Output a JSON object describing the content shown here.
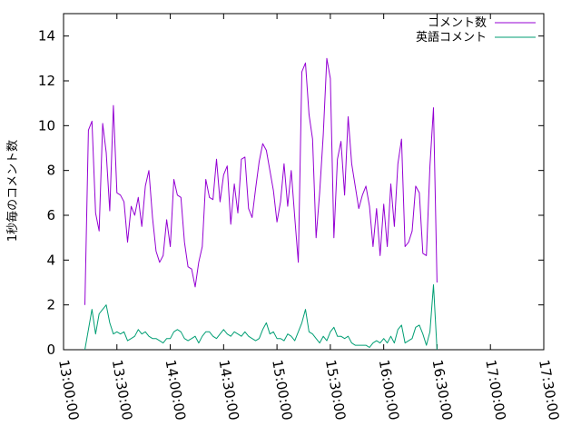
{
  "chart_data": {
    "type": "line",
    "ylabel": "1秒毎のコメント数",
    "ylim": [
      0,
      15
    ],
    "xlim": [
      "13:00:00",
      "17:30:00"
    ],
    "y_ticks": [
      0,
      2,
      4,
      6,
      8,
      10,
      12,
      14
    ],
    "x_ticks": [
      "13:00:00",
      "13:30:00",
      "14:00:00",
      "14:30:00",
      "15:00:00",
      "15:30:00",
      "16:00:00",
      "16:30:00",
      "17:00:00",
      "17:30:00"
    ],
    "grid": false,
    "legend_position": "top-right",
    "series": [
      {
        "name": "コメント数",
        "color": "#9400d3",
        "points": [
          [
            "13:12:00",
            2.0
          ],
          [
            "13:14:00",
            9.8
          ],
          [
            "13:16:00",
            10.2
          ],
          [
            "13:18:00",
            6.1
          ],
          [
            "13:20:00",
            5.3
          ],
          [
            "13:22:00",
            10.1
          ],
          [
            "13:24:00",
            8.8
          ],
          [
            "13:26:00",
            6.2
          ],
          [
            "13:28:00",
            10.9
          ],
          [
            "13:30:00",
            7.0
          ],
          [
            "13:32:00",
            6.9
          ],
          [
            "13:34:00",
            6.6
          ],
          [
            "13:36:00",
            4.8
          ],
          [
            "13:38:00",
            6.4
          ],
          [
            "13:40:00",
            6.0
          ],
          [
            "13:42:00",
            6.8
          ],
          [
            "13:44:00",
            5.5
          ],
          [
            "13:46:00",
            7.3
          ],
          [
            "13:48:00",
            8.0
          ],
          [
            "13:50:00",
            5.9
          ],
          [
            "13:52:00",
            4.4
          ],
          [
            "13:54:00",
            3.9
          ],
          [
            "13:56:00",
            4.2
          ],
          [
            "13:58:00",
            5.8
          ],
          [
            "14:00:00",
            4.6
          ],
          [
            "14:02:00",
            7.6
          ],
          [
            "14:04:00",
            6.9
          ],
          [
            "14:06:00",
            6.8
          ],
          [
            "14:08:00",
            4.8
          ],
          [
            "14:10:00",
            3.7
          ],
          [
            "14:12:00",
            3.6
          ],
          [
            "14:14:00",
            2.8
          ],
          [
            "14:16:00",
            3.9
          ],
          [
            "14:18:00",
            4.6
          ],
          [
            "14:20:00",
            7.6
          ],
          [
            "14:22:00",
            6.8
          ],
          [
            "14:24:00",
            6.7
          ],
          [
            "14:26:00",
            8.5
          ],
          [
            "14:28:00",
            6.6
          ],
          [
            "14:30:00",
            7.8
          ],
          [
            "14:32:00",
            8.2
          ],
          [
            "14:34:00",
            5.6
          ],
          [
            "14:36:00",
            7.4
          ],
          [
            "14:38:00",
            6.1
          ],
          [
            "14:40:00",
            8.5
          ],
          [
            "14:42:00",
            8.6
          ],
          [
            "14:44:00",
            6.3
          ],
          [
            "14:46:00",
            5.9
          ],
          [
            "14:48:00",
            7.2
          ],
          [
            "14:50:00",
            8.4
          ],
          [
            "14:52:00",
            9.2
          ],
          [
            "14:54:00",
            8.9
          ],
          [
            "14:56:00",
            8.0
          ],
          [
            "14:58:00",
            7.1
          ],
          [
            "15:00:00",
            5.7
          ],
          [
            "15:02:00",
            6.6
          ],
          [
            "15:04:00",
            8.3
          ],
          [
            "15:06:00",
            6.4
          ],
          [
            "15:08:00",
            8.0
          ],
          [
            "15:10:00",
            5.9
          ],
          [
            "15:12:00",
            3.9
          ],
          [
            "15:14:00",
            12.4
          ],
          [
            "15:16:00",
            12.8
          ],
          [
            "15:18:00",
            10.5
          ],
          [
            "15:20:00",
            9.4
          ],
          [
            "15:22:00",
            5.0
          ],
          [
            "15:24:00",
            7.0
          ],
          [
            "15:26:00",
            9.6
          ],
          [
            "15:28:00",
            13.0
          ],
          [
            "15:30:00",
            12.1
          ],
          [
            "15:32:00",
            5.0
          ],
          [
            "15:34:00",
            8.5
          ],
          [
            "15:36:00",
            9.3
          ],
          [
            "15:38:00",
            6.9
          ],
          [
            "15:40:00",
            10.4
          ],
          [
            "15:42:00",
            8.3
          ],
          [
            "15:44:00",
            7.3
          ],
          [
            "15:46:00",
            6.3
          ],
          [
            "15:48:00",
            6.9
          ],
          [
            "15:50:00",
            7.3
          ],
          [
            "15:52:00",
            6.4
          ],
          [
            "15:54:00",
            4.6
          ],
          [
            "15:56:00",
            6.3
          ],
          [
            "15:58:00",
            4.2
          ],
          [
            "16:00:00",
            6.5
          ],
          [
            "16:02:00",
            4.6
          ],
          [
            "16:04:00",
            7.4
          ],
          [
            "16:06:00",
            5.5
          ],
          [
            "16:08:00",
            8.3
          ],
          [
            "16:10:00",
            9.4
          ],
          [
            "16:12:00",
            4.6
          ],
          [
            "16:14:00",
            4.8
          ],
          [
            "16:16:00",
            5.3
          ],
          [
            "16:18:00",
            7.3
          ],
          [
            "16:20:00",
            7.0
          ],
          [
            "16:22:00",
            4.3
          ],
          [
            "16:24:00",
            4.2
          ],
          [
            "16:26:00",
            8.2
          ],
          [
            "16:28:00",
            10.8
          ],
          [
            "16:30:00",
            3.0
          ]
        ]
      },
      {
        "name": "英語コメント",
        "color": "#009e73",
        "points": [
          [
            "13:12:00",
            0.0
          ],
          [
            "13:14:00",
            0.9
          ],
          [
            "13:16:00",
            1.8
          ],
          [
            "13:18:00",
            0.7
          ],
          [
            "13:20:00",
            1.6
          ],
          [
            "13:22:00",
            1.8
          ],
          [
            "13:24:00",
            2.0
          ],
          [
            "13:26:00",
            1.2
          ],
          [
            "13:28:00",
            0.7
          ],
          [
            "13:30:00",
            0.8
          ],
          [
            "13:32:00",
            0.7
          ],
          [
            "13:34:00",
            0.8
          ],
          [
            "13:36:00",
            0.4
          ],
          [
            "13:38:00",
            0.5
          ],
          [
            "13:40:00",
            0.6
          ],
          [
            "13:42:00",
            0.9
          ],
          [
            "13:44:00",
            0.7
          ],
          [
            "13:46:00",
            0.8
          ],
          [
            "13:48:00",
            0.6
          ],
          [
            "13:50:00",
            0.5
          ],
          [
            "13:52:00",
            0.5
          ],
          [
            "13:54:00",
            0.4
          ],
          [
            "13:56:00",
            0.3
          ],
          [
            "13:58:00",
            0.5
          ],
          [
            "14:00:00",
            0.5
          ],
          [
            "14:02:00",
            0.8
          ],
          [
            "14:04:00",
            0.9
          ],
          [
            "14:06:00",
            0.8
          ],
          [
            "14:08:00",
            0.5
          ],
          [
            "14:10:00",
            0.4
          ],
          [
            "14:12:00",
            0.5
          ],
          [
            "14:14:00",
            0.6
          ],
          [
            "14:16:00",
            0.3
          ],
          [
            "14:18:00",
            0.6
          ],
          [
            "14:20:00",
            0.8
          ],
          [
            "14:22:00",
            0.8
          ],
          [
            "14:24:00",
            0.6
          ],
          [
            "14:26:00",
            0.5
          ],
          [
            "14:28:00",
            0.7
          ],
          [
            "14:30:00",
            0.9
          ],
          [
            "14:32:00",
            0.7
          ],
          [
            "14:34:00",
            0.6
          ],
          [
            "14:36:00",
            0.8
          ],
          [
            "14:38:00",
            0.7
          ],
          [
            "14:40:00",
            0.6
          ],
          [
            "14:42:00",
            0.8
          ],
          [
            "14:44:00",
            0.6
          ],
          [
            "14:46:00",
            0.5
          ],
          [
            "14:48:00",
            0.4
          ],
          [
            "14:50:00",
            0.5
          ],
          [
            "14:52:00",
            0.9
          ],
          [
            "14:54:00",
            1.2
          ],
          [
            "14:56:00",
            0.7
          ],
          [
            "14:58:00",
            0.8
          ],
          [
            "15:00:00",
            0.5
          ],
          [
            "15:02:00",
            0.5
          ],
          [
            "15:04:00",
            0.4
          ],
          [
            "15:06:00",
            0.7
          ],
          [
            "15:08:00",
            0.6
          ],
          [
            "15:10:00",
            0.4
          ],
          [
            "15:12:00",
            0.8
          ],
          [
            "15:14:00",
            1.2
          ],
          [
            "15:16:00",
            1.8
          ],
          [
            "15:18:00",
            0.8
          ],
          [
            "15:20:00",
            0.7
          ],
          [
            "15:22:00",
            0.5
          ],
          [
            "15:24:00",
            0.3
          ],
          [
            "15:26:00",
            0.6
          ],
          [
            "15:28:00",
            0.4
          ],
          [
            "15:30:00",
            0.8
          ],
          [
            "15:32:00",
            1.0
          ],
          [
            "15:34:00",
            0.6
          ],
          [
            "15:36:00",
            0.6
          ],
          [
            "15:38:00",
            0.5
          ],
          [
            "15:40:00",
            0.6
          ],
          [
            "15:42:00",
            0.3
          ],
          [
            "15:44:00",
            0.2
          ],
          [
            "15:46:00",
            0.2
          ],
          [
            "15:48:00",
            0.2
          ],
          [
            "15:50:00",
            0.2
          ],
          [
            "15:52:00",
            0.1
          ],
          [
            "15:54:00",
            0.3
          ],
          [
            "15:56:00",
            0.4
          ],
          [
            "15:58:00",
            0.3
          ],
          [
            "16:00:00",
            0.5
          ],
          [
            "16:02:00",
            0.3
          ],
          [
            "16:04:00",
            0.6
          ],
          [
            "16:06:00",
            0.3
          ],
          [
            "16:08:00",
            0.9
          ],
          [
            "16:10:00",
            1.1
          ],
          [
            "16:12:00",
            0.3
          ],
          [
            "16:14:00",
            0.4
          ],
          [
            "16:16:00",
            0.5
          ],
          [
            "16:18:00",
            1.0
          ],
          [
            "16:20:00",
            1.1
          ],
          [
            "16:22:00",
            0.7
          ],
          [
            "16:24:00",
            0.2
          ],
          [
            "16:26:00",
            0.8
          ],
          [
            "16:28:00",
            2.9
          ],
          [
            "16:30:00",
            0.0
          ]
        ]
      }
    ]
  }
}
